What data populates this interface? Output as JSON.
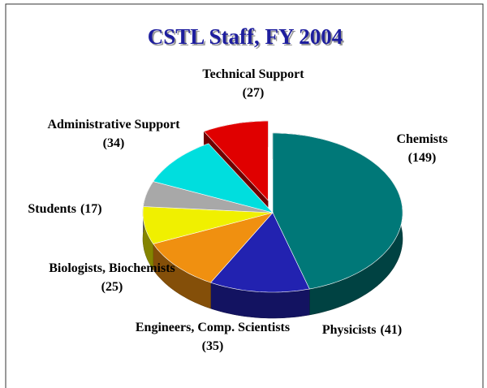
{
  "chart_data": {
    "type": "pie",
    "title": "CSTL Staff, FY 2004",
    "categories": [
      "Chemists",
      "Physicists",
      "Engineers, Comp. Scientists",
      "Biologists, Biochemists",
      "Students",
      "Administrative Support",
      "Technical Support"
    ],
    "values": [
      149,
      41,
      35,
      25,
      17,
      34,
      27
    ],
    "value_labels": [
      "(149)",
      "(41)",
      "(35)",
      "(25)",
      "(17)",
      "(34)",
      "(27)"
    ],
    "colors": [
      "#007878",
      "#2222b0",
      "#f09010",
      "#f0f000",
      "#a8a8a8",
      "#00dede",
      "#e00000"
    ],
    "exploded": [
      false,
      false,
      false,
      false,
      false,
      false,
      true
    ]
  }
}
